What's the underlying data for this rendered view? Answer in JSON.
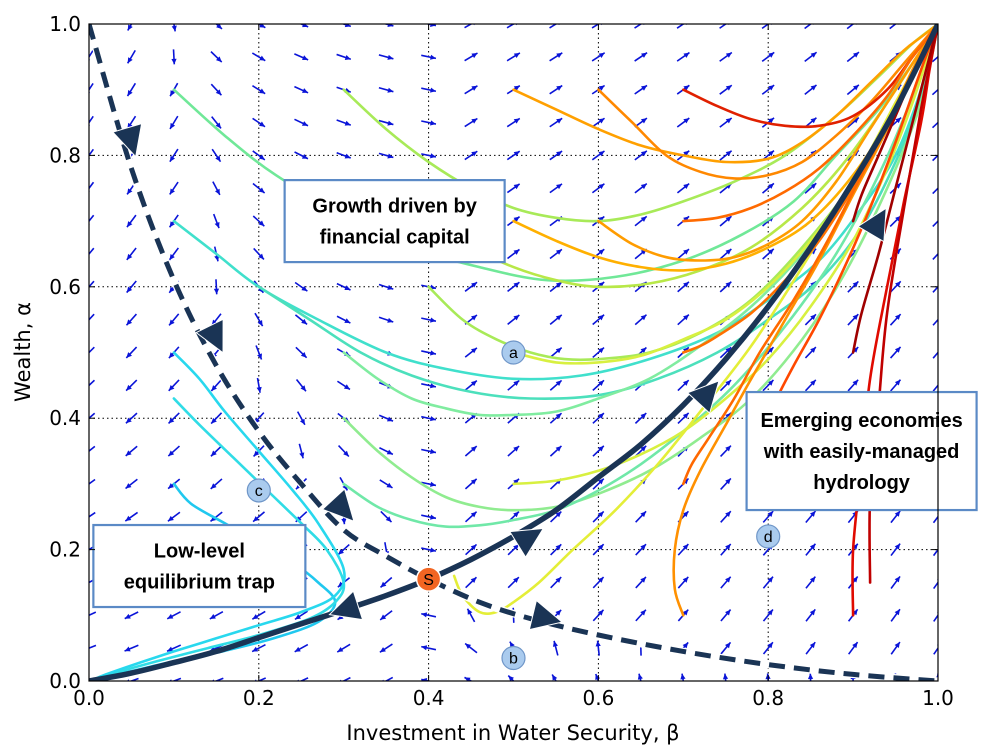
{
  "chart_data": {
    "type": "phase-portrait",
    "xlabel": "Investment in Water Security, β",
    "ylabel": "Wealth, α",
    "xlim": [
      0,
      1
    ],
    "ylim": [
      0,
      1
    ],
    "x_ticks": [
      "0.0",
      "0.2",
      "0.4",
      "0.6",
      "0.8",
      "1.0"
    ],
    "y_ticks": [
      "0.0",
      "0.2",
      "0.4",
      "0.6",
      "0.8",
      "1.0"
    ],
    "grid": "dotted",
    "vector_field": {
      "color": "#0a14d8",
      "x_count": 21,
      "y_count": 21
    },
    "trajectories": [
      {
        "x": [
          0.1,
          0.12,
          0.16,
          0.2,
          0.24,
          0.27,
          0.29,
          0.27,
          0.22,
          0.16,
          0.1,
          0.05,
          0.01
        ],
        "y": [
          0.3,
          0.27,
          0.24,
          0.21,
          0.18,
          0.15,
          0.12,
          0.09,
          0.066,
          0.046,
          0.03,
          0.015,
          0.004
        ],
        "color": "#20c8ef"
      },
      {
        "x": [
          0.1,
          0.13,
          0.17,
          0.21,
          0.25,
          0.28,
          0.3,
          0.29,
          0.26,
          0.2,
          0.14,
          0.08,
          0.03,
          0.005
        ],
        "y": [
          0.43,
          0.39,
          0.34,
          0.29,
          0.24,
          0.2,
          0.15,
          0.12,
          0.095,
          0.07,
          0.05,
          0.03,
          0.012,
          0.002
        ],
        "color": "#30dce6"
      },
      {
        "x": [
          0.1,
          0.13,
          0.16,
          0.2,
          0.24,
          0.27,
          0.3,
          0.29,
          0.25,
          0.2,
          0.15,
          0.1,
          0.06,
          0.02,
          0.005
        ],
        "y": [
          0.5,
          0.46,
          0.41,
          0.35,
          0.29,
          0.24,
          0.17,
          0.13,
          0.105,
          0.085,
          0.065,
          0.045,
          0.028,
          0.01,
          0.002
        ],
        "color": "#28d8ee"
      },
      {
        "x": [
          0.1,
          0.15,
          0.2,
          0.27,
          0.35,
          0.42,
          0.5,
          0.58,
          0.66,
          0.74,
          0.8,
          0.86,
          0.91,
          0.95,
          0.98,
          1.0
        ],
        "y": [
          0.7,
          0.65,
          0.6,
          0.55,
          0.5,
          0.475,
          0.46,
          0.465,
          0.49,
          0.53,
          0.58,
          0.64,
          0.72,
          0.8,
          0.9,
          1.0
        ],
        "color": "#40e0cc"
      },
      {
        "x": [
          0.1,
          0.16,
          0.22,
          0.3,
          0.38,
          0.46,
          0.54,
          0.62,
          0.7,
          0.77,
          0.83,
          0.88,
          0.93,
          0.97,
          1.0
        ],
        "y": [
          0.9,
          0.83,
          0.77,
          0.71,
          0.66,
          0.63,
          0.61,
          0.615,
          0.64,
          0.68,
          0.73,
          0.8,
          0.87,
          0.94,
          1.0
        ],
        "color": "#70e898"
      },
      {
        "x": [
          0.2,
          0.26,
          0.32,
          0.38,
          0.45,
          0.52,
          0.6,
          0.67,
          0.74,
          0.8,
          0.86,
          0.91,
          0.95,
          0.98,
          1.0
        ],
        "y": [
          0.6,
          0.55,
          0.5,
          0.465,
          0.44,
          0.43,
          0.435,
          0.46,
          0.5,
          0.55,
          0.61,
          0.69,
          0.79,
          0.89,
          1.0
        ],
        "color": "#4ce0bc"
      },
      {
        "x": [
          0.3,
          0.34,
          0.38,
          0.42,
          0.46,
          0.5,
          0.55,
          0.6,
          0.66,
          0.72,
          0.78,
          0.84,
          0.9,
          0.95,
          1.0
        ],
        "y": [
          0.5,
          0.46,
          0.43,
          0.415,
          0.405,
          0.405,
          0.41,
          0.43,
          0.46,
          0.51,
          0.57,
          0.65,
          0.75,
          0.87,
          1.0
        ],
        "color": "#80eca0"
      },
      {
        "x": [
          0.3,
          0.34,
          0.38,
          0.42,
          0.46,
          0.5,
          0.55,
          0.6,
          0.66,
          0.72,
          0.78,
          0.84,
          0.89,
          0.94,
          0.98,
          1.0
        ],
        "y": [
          0.4,
          0.35,
          0.31,
          0.28,
          0.265,
          0.26,
          0.265,
          0.285,
          0.32,
          0.37,
          0.43,
          0.52,
          0.62,
          0.75,
          0.88,
          1.0
        ],
        "color": "#90ec90"
      },
      {
        "x": [
          0.3,
          0.34,
          0.38,
          0.42,
          0.46,
          0.5,
          0.55,
          0.6,
          0.65,
          0.7,
          0.76,
          0.82,
          0.88,
          0.93,
          0.97,
          1.0
        ],
        "y": [
          0.3,
          0.265,
          0.245,
          0.235,
          0.237,
          0.245,
          0.26,
          0.29,
          0.33,
          0.38,
          0.45,
          0.54,
          0.65,
          0.77,
          0.89,
          1.0
        ],
        "color": "#70e8a8"
      },
      {
        "x": [
          0.3,
          0.35,
          0.4,
          0.45,
          0.5,
          0.55,
          0.6,
          0.65,
          0.7,
          0.76,
          0.82,
          0.88,
          0.93,
          0.97,
          1.0
        ],
        "y": [
          0.9,
          0.84,
          0.79,
          0.75,
          0.72,
          0.705,
          0.7,
          0.71,
          0.73,
          0.76,
          0.8,
          0.86,
          0.92,
          0.97,
          1.0
        ],
        "color": "#a8ea58"
      },
      {
        "x": [
          0.4,
          0.45,
          0.5,
          0.55,
          0.6,
          0.66,
          0.72,
          0.78,
          0.84,
          0.89,
          0.94,
          0.98,
          1.0
        ],
        "y": [
          0.7,
          0.66,
          0.63,
          0.61,
          0.6,
          0.605,
          0.625,
          0.66,
          0.72,
          0.79,
          0.88,
          0.96,
          1.0
        ],
        "color": "#b8e848"
      },
      {
        "x": [
          0.4,
          0.44,
          0.48,
          0.52,
          0.56,
          0.6,
          0.66,
          0.72,
          0.78,
          0.84,
          0.9,
          0.95,
          0.98,
          1.0
        ],
        "y": [
          0.6,
          0.55,
          0.52,
          0.5,
          0.49,
          0.49,
          0.5,
          0.53,
          0.58,
          0.66,
          0.76,
          0.88,
          0.95,
          1.0
        ],
        "color": "#a8ea58"
      },
      {
        "x": [
          0.5,
          0.55,
          0.6,
          0.65,
          0.7,
          0.75,
          0.8,
          0.85,
          0.9,
          0.94,
          0.97,
          1.0
        ],
        "y": [
          0.5,
          0.485,
          0.485,
          0.495,
          0.52,
          0.55,
          0.6,
          0.67,
          0.76,
          0.85,
          0.92,
          1.0
        ],
        "color": "#d8f040"
      },
      {
        "x": [
          0.5,
          0.55,
          0.6,
          0.65,
          0.7,
          0.75,
          0.8,
          0.85,
          0.9,
          0.94,
          0.97,
          1.0
        ],
        "y": [
          0.3,
          0.305,
          0.32,
          0.345,
          0.38,
          0.43,
          0.49,
          0.57,
          0.67,
          0.78,
          0.88,
          1.0
        ],
        "color": "#d8f040"
      },
      {
        "x": [
          0.43,
          0.44,
          0.46,
          0.48,
          0.5,
          0.53,
          0.57,
          0.62,
          0.67,
          0.72,
          0.78,
          0.84,
          0.9,
          0.95,
          1.0
        ],
        "y": [
          0.16,
          0.13,
          0.105,
          0.105,
          0.12,
          0.15,
          0.2,
          0.26,
          0.33,
          0.41,
          0.51,
          0.63,
          0.76,
          0.88,
          1.0
        ],
        "color": "#e4ee38"
      },
      {
        "x": [
          0.5,
          0.55,
          0.6,
          0.65,
          0.7,
          0.75,
          0.8,
          0.84,
          0.88,
          0.92,
          0.96,
          0.98,
          1.0
        ],
        "y": [
          0.9,
          0.87,
          0.84,
          0.815,
          0.8,
          0.79,
          0.795,
          0.82,
          0.86,
          0.91,
          0.96,
          0.98,
          1.0
        ],
        "color": "#ffa000"
      },
      {
        "x": [
          0.5,
          0.55,
          0.6,
          0.65,
          0.7,
          0.75,
          0.8,
          0.85,
          0.9,
          0.94,
          0.97,
          1.0
        ],
        "y": [
          0.7,
          0.67,
          0.645,
          0.63,
          0.625,
          0.635,
          0.66,
          0.7,
          0.77,
          0.85,
          0.93,
          1.0
        ],
        "color": "#ffb000"
      },
      {
        "x": [
          0.6,
          0.64,
          0.68,
          0.72,
          0.76,
          0.8,
          0.84,
          0.88,
          0.92,
          0.96,
          1.0
        ],
        "y": [
          0.9,
          0.85,
          0.8,
          0.775,
          0.765,
          0.77,
          0.79,
          0.83,
          0.88,
          0.94,
          1.0
        ],
        "color": "#ff8800"
      },
      {
        "x": [
          0.6,
          0.64,
          0.68,
          0.72,
          0.76,
          0.8,
          0.84,
          0.88,
          0.92,
          0.96,
          1.0
        ],
        "y": [
          0.7,
          0.665,
          0.645,
          0.64,
          0.645,
          0.665,
          0.7,
          0.76,
          0.84,
          0.92,
          1.0
        ],
        "color": "#ff9c00"
      },
      {
        "x": [
          0.7,
          0.74,
          0.78,
          0.82,
          0.86,
          0.9,
          0.94,
          0.97,
          1.0
        ],
        "y": [
          0.9,
          0.875,
          0.855,
          0.845,
          0.845,
          0.86,
          0.9,
          0.95,
          1.0
        ],
        "color": "#e02000"
      },
      {
        "x": [
          0.7,
          0.74,
          0.78,
          0.82,
          0.86,
          0.9,
          0.94,
          0.97,
          1.0
        ],
        "y": [
          0.7,
          0.705,
          0.72,
          0.745,
          0.78,
          0.83,
          0.89,
          0.95,
          1.0
        ],
        "color": "#ff6a00"
      },
      {
        "x": [
          0.7,
          0.72,
          0.74,
          0.78,
          0.82,
          0.86,
          0.9,
          0.94,
          0.97,
          1.0
        ],
        "y": [
          0.5,
          0.51,
          0.525,
          0.56,
          0.61,
          0.67,
          0.75,
          0.84,
          0.92,
          1.0
        ],
        "color": "#ff7000"
      },
      {
        "x": [
          0.7,
          0.69,
          0.69,
          0.7,
          0.72,
          0.75,
          0.78,
          0.82,
          0.86,
          0.9,
          0.94,
          0.97,
          1.0
        ],
        "y": [
          0.1,
          0.14,
          0.2,
          0.26,
          0.32,
          0.39,
          0.46,
          0.55,
          0.64,
          0.74,
          0.84,
          0.93,
          1.0
        ],
        "color": "#ff9000"
      },
      {
        "x": [
          0.7,
          0.71,
          0.73,
          0.76,
          0.79,
          0.83,
          0.87,
          0.91,
          0.95,
          0.98,
          1.0
        ],
        "y": [
          0.3,
          0.33,
          0.37,
          0.43,
          0.5,
          0.58,
          0.67,
          0.77,
          0.87,
          0.95,
          1.0
        ],
        "color": "#ff6800"
      },
      {
        "x": [
          0.8,
          0.81,
          0.83,
          0.86,
          0.89,
          0.92,
          0.95,
          0.98,
          1.0
        ],
        "y": [
          0.4,
          0.43,
          0.48,
          0.55,
          0.63,
          0.72,
          0.82,
          0.93,
          1.0
        ],
        "color": "#ff4800"
      },
      {
        "x": [
          0.9,
          0.9,
          0.91,
          0.92,
          0.94,
          0.96,
          0.98,
          0.99,
          1.0
        ],
        "y": [
          0.1,
          0.2,
          0.33,
          0.46,
          0.6,
          0.73,
          0.85,
          0.93,
          1.0
        ],
        "color": "#e00a00"
      },
      {
        "x": [
          0.92,
          0.92,
          0.93,
          0.94,
          0.96,
          0.98,
          1.0
        ],
        "y": [
          0.15,
          0.28,
          0.42,
          0.56,
          0.72,
          0.87,
          1.0
        ],
        "color": "#c00000"
      },
      {
        "x": [
          0.9,
          0.91,
          0.93,
          0.95,
          0.97,
          0.99,
          1.0
        ],
        "y": [
          0.5,
          0.56,
          0.65,
          0.75,
          0.85,
          0.95,
          1.0
        ],
        "color": "#a00000"
      },
      {
        "x": [
          0.9,
          0.91,
          0.93,
          0.95,
          0.97,
          0.99,
          1.0
        ],
        "y": [
          0.7,
          0.74,
          0.8,
          0.86,
          0.92,
          0.97,
          1.0
        ],
        "color": "#a00000"
      }
    ],
    "separatrix_stable": {
      "x": [
        0.0,
        0.05,
        0.1,
        0.15,
        0.2,
        0.25,
        0.3,
        0.35,
        0.4,
        0.46,
        0.52,
        0.6,
        0.7,
        0.8,
        0.9,
        1.0
      ],
      "y": [
        1.0,
        0.78,
        0.61,
        0.48,
        0.38,
        0.3,
        0.23,
        0.19,
        0.155,
        0.12,
        0.095,
        0.07,
        0.045,
        0.025,
        0.01,
        0.0
      ],
      "color": "#1a3455"
    },
    "separatrix_unstable": {
      "x": [
        0.0,
        0.05,
        0.1,
        0.15,
        0.2,
        0.25,
        0.3,
        0.35,
        0.4,
        0.45,
        0.5,
        0.55,
        0.6,
        0.65,
        0.7,
        0.75,
        0.8,
        0.85,
        0.9,
        0.95,
        1.0
      ],
      "y": [
        0.0,
        0.012,
        0.028,
        0.045,
        0.066,
        0.087,
        0.108,
        0.13,
        0.155,
        0.185,
        0.22,
        0.26,
        0.31,
        0.36,
        0.42,
        0.49,
        0.57,
        0.66,
        0.76,
        0.87,
        1.0
      ],
      "color": "#1a3455"
    },
    "arrowheads": [
      {
        "x": 0.05,
        "y": 0.82,
        "dir": "down"
      },
      {
        "x": 0.15,
        "y": 0.52,
        "dir": "down"
      },
      {
        "x": 0.3,
        "y": 0.26,
        "dir": "down"
      },
      {
        "x": 0.54,
        "y": 0.095,
        "dir": "down"
      },
      {
        "x": 0.3,
        "y": 0.108,
        "dir": "left"
      },
      {
        "x": 0.52,
        "y": 0.22,
        "dir": "right"
      },
      {
        "x": 0.73,
        "y": 0.44,
        "dir": "right"
      },
      {
        "x": 0.93,
        "y": 0.7,
        "dir": "right"
      }
    ],
    "saddle_point": {
      "x": 0.4,
      "y": 0.155,
      "label": "S",
      "color": "#f26522"
    },
    "point_markers": [
      {
        "label": "a",
        "x": 0.5,
        "y": 0.5
      },
      {
        "label": "b",
        "x": 0.5,
        "y": 0.035
      },
      {
        "label": "c",
        "x": 0.2,
        "y": 0.29
      },
      {
        "label": "d",
        "x": 0.8,
        "y": 0.22
      }
    ],
    "annotations": [
      {
        "lines": [
          "Growth driven by",
          "financial capital"
        ],
        "x": 0.36,
        "y": 0.7
      },
      {
        "lines": [
          "Emerging economies",
          "with easily-managed",
          "hydrology"
        ],
        "x": 0.91,
        "y": 0.35
      },
      {
        "lines": [
          "Low-level",
          "equilibrium trap"
        ],
        "x": 0.13,
        "y": 0.175
      }
    ]
  }
}
